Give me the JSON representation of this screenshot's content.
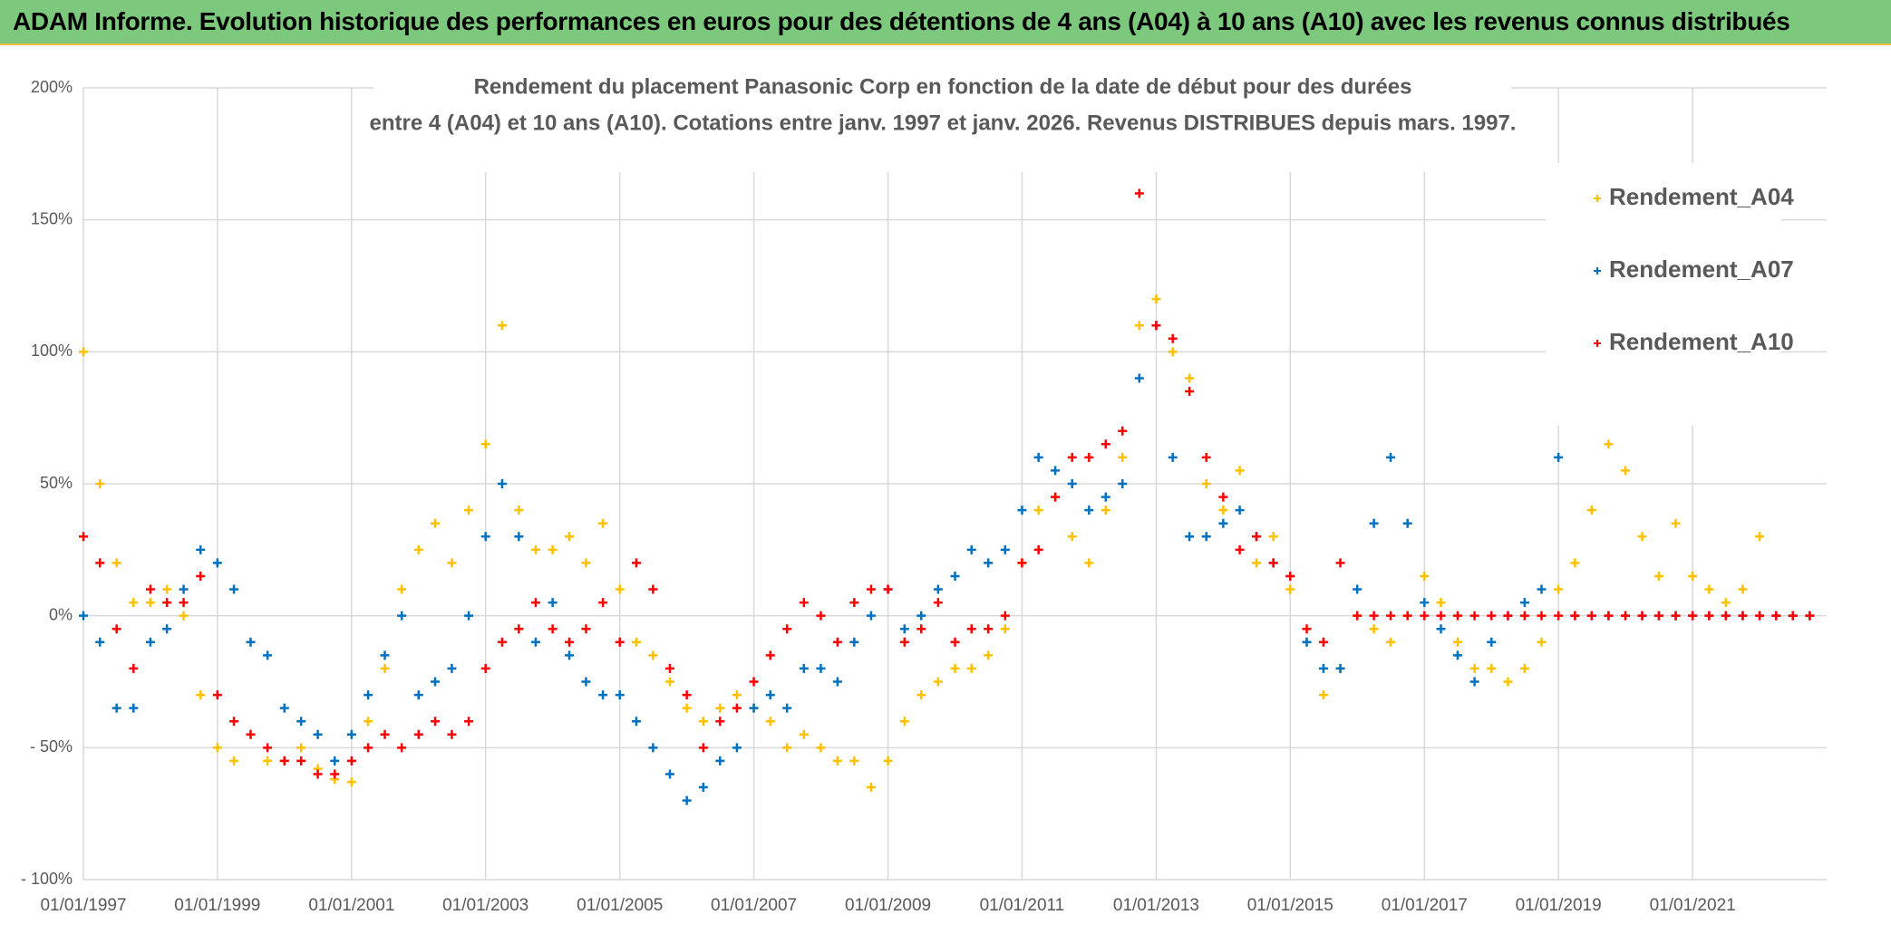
{
  "header": {
    "title": "ADAM Informe. Evolution historique des performances en euros pour des détentions de 4 ans (A04) à 10 ans (A10) avec les revenus connus distribués"
  },
  "chart_data": {
    "type": "scatter",
    "title": [
      "Rendement du placement Panasonic Corp en fonction de la date de début pour des durées",
      "entre 4 (A04) et 10 ans (A10). Cotations entre janv. 1997 et janv. 2026. Revenus DISTRIBUES depuis mars. 1997."
    ],
    "x": [
      "1997-01-01",
      "1997-04-01",
      "1997-07-01",
      "1997-10-01",
      "1998-01-01",
      "1998-04-01",
      "1998-07-01",
      "1998-10-01",
      "1999-01-01",
      "1999-04-01",
      "1999-07-01",
      "1999-10-01",
      "2000-01-01",
      "2000-04-01",
      "2000-07-01",
      "2000-10-01",
      "2001-01-01",
      "2001-04-01",
      "2001-07-01",
      "2001-10-01",
      "2002-01-01",
      "2002-04-01",
      "2002-07-01",
      "2002-10-01",
      "2003-01-01",
      "2003-04-01",
      "2003-07-01",
      "2003-10-01",
      "2004-01-01",
      "2004-04-01",
      "2004-07-01",
      "2004-10-01",
      "2005-01-01",
      "2005-04-01",
      "2005-07-01",
      "2005-10-01",
      "2006-01-01",
      "2006-04-01",
      "2006-07-01",
      "2006-10-01",
      "2007-01-01",
      "2007-04-01",
      "2007-07-01",
      "2007-10-01",
      "2008-01-01",
      "2008-04-01",
      "2008-07-01",
      "2008-10-01",
      "2009-01-01",
      "2009-04-01",
      "2009-07-01",
      "2009-10-01",
      "2010-01-01",
      "2010-04-01",
      "2010-07-01",
      "2010-10-01",
      "2011-01-01",
      "2011-04-01",
      "2011-07-01",
      "2011-10-01",
      "2012-01-01",
      "2012-04-01",
      "2012-07-01",
      "2012-10-01",
      "2013-01-01",
      "2013-04-01",
      "2013-07-01",
      "2013-10-01",
      "2014-01-01",
      "2014-04-01",
      "2014-07-01",
      "2014-10-01",
      "2015-01-01",
      "2015-04-01",
      "2015-07-01",
      "2015-10-01",
      "2016-01-01",
      "2016-04-01",
      "2016-07-01",
      "2016-10-01",
      "2017-01-01",
      "2017-04-01",
      "2017-07-01",
      "2017-10-01",
      "2018-01-01",
      "2018-04-01",
      "2018-07-01",
      "2018-10-01",
      "2019-01-01",
      "2019-04-01",
      "2019-07-01",
      "2019-10-01",
      "2020-01-01",
      "2020-04-01",
      "2020-07-01",
      "2020-10-01",
      "2021-01-01",
      "2021-04-01",
      "2021-07-01",
      "2021-10-01",
      "2022-01-01",
      "2022-04-01",
      "2022-07-01",
      "2022-10-01"
    ],
    "series": [
      {
        "name": "Rendement_A04",
        "color": "#ffc000",
        "values": [
          100,
          50,
          20,
          5,
          5,
          10,
          0,
          -30,
          -50,
          -55,
          -45,
          -55,
          -55,
          -50,
          -58,
          -62,
          -63,
          -40,
          -20,
          10,
          25,
          35,
          20,
          40,
          65,
          110,
          40,
          25,
          25,
          30,
          20,
          35,
          10,
          -10,
          -15,
          -25,
          -35,
          -40,
          -35,
          -30,
          -35,
          -40,
          -50,
          -45,
          -50,
          -55,
          -55,
          -65,
          -55,
          -40,
          -30,
          -25,
          -20,
          -20,
          -15,
          -5,
          20,
          40,
          45,
          30,
          20,
          40,
          60,
          110,
          120,
          100,
          90,
          50,
          40,
          55,
          20,
          30,
          10,
          -10,
          -30,
          -20,
          0,
          -5,
          -10,
          0,
          15,
          5,
          -10,
          -20,
          -20,
          -25,
          -20,
          -10,
          10,
          20,
          40,
          65,
          55,
          30,
          15,
          35,
          15,
          10,
          5,
          10,
          30,
          0,
          0,
          0
        ]
      },
      {
        "name": "Rendement_A07",
        "color": "#0070c0",
        "values": [
          0,
          -10,
          -35,
          -35,
          -10,
          -5,
          10,
          25,
          20,
          10,
          -10,
          -15,
          -35,
          -40,
          -45,
          -55,
          -45,
          -30,
          -15,
          0,
          -30,
          -25,
          -20,
          0,
          30,
          50,
          30,
          -10,
          5,
          -15,
          -25,
          -30,
          -30,
          -40,
          -50,
          -60,
          -70,
          -65,
          -55,
          -50,
          -35,
          -30,
          -35,
          -20,
          -20,
          -25,
          -10,
          0,
          10,
          -5,
          0,
          10,
          15,
          25,
          20,
          25,
          40,
          60,
          55,
          50,
          40,
          45,
          50,
          90,
          110,
          60,
          30,
          30,
          35,
          40,
          30,
          20,
          15,
          -10,
          -20,
          -20,
          10,
          35,
          60,
          35,
          5,
          -5,
          -15,
          -25,
          -10,
          0,
          5,
          10,
          60,
          0,
          0,
          0,
          0,
          0,
          0,
          0,
          0,
          0,
          0,
          0,
          0,
          0,
          0,
          0
        ]
      },
      {
        "name": "Rendement_A10",
        "color": "#ff0000",
        "values": [
          30,
          20,
          -5,
          -20,
          10,
          5,
          5,
          15,
          -30,
          -40,
          -45,
          -50,
          -55,
          -55,
          -60,
          -60,
          -55,
          -50,
          -45,
          -50,
          -45,
          -40,
          -45,
          -40,
          -20,
          -10,
          -5,
          5,
          -5,
          -10,
          -5,
          5,
          -10,
          20,
          10,
          -20,
          -30,
          -50,
          -40,
          -35,
          -25,
          -15,
          -5,
          5,
          0,
          -10,
          5,
          10,
          10,
          -10,
          -5,
          5,
          -10,
          -5,
          -5,
          0,
          20,
          25,
          45,
          60,
          60,
          65,
          70,
          160,
          110,
          105,
          85,
          60,
          45,
          25,
          30,
          20,
          15,
          -5,
          -10,
          20,
          0,
          0,
          0,
          0,
          0,
          0,
          0,
          0,
          0,
          0,
          0,
          0,
          0,
          0,
          0,
          0,
          0,
          0,
          0,
          0,
          0,
          0,
          0,
          0,
          0,
          0,
          0,
          0
        ]
      }
    ],
    "xlim": [
      "1997-01-01",
      "2023-01-01"
    ],
    "xticks": [
      {
        "value": "1997-01-01",
        "label": "01/01/1997"
      },
      {
        "value": "1999-01-01",
        "label": "01/01/1999"
      },
      {
        "value": "2001-01-01",
        "label": "01/01/2001"
      },
      {
        "value": "2003-01-01",
        "label": "01/01/2003"
      },
      {
        "value": "2005-01-01",
        "label": "01/01/2005"
      },
      {
        "value": "2007-01-01",
        "label": "01/01/2007"
      },
      {
        "value": "2009-01-01",
        "label": "01/01/2009"
      },
      {
        "value": "2011-01-01",
        "label": "01/01/2011"
      },
      {
        "value": "2013-01-01",
        "label": "01/01/2013"
      },
      {
        "value": "2015-01-01",
        "label": "01/01/2015"
      },
      {
        "value": "2017-01-01",
        "label": "01/01/2017"
      },
      {
        "value": "2019-01-01",
        "label": "01/01/2019"
      },
      {
        "value": "2021-01-01",
        "label": "01/01/2021"
      }
    ],
    "ylim": [
      -100,
      200
    ],
    "yticks": [
      {
        "value": -100,
        "label": "- 100%"
      },
      {
        "value": -50,
        "label": "- 50%"
      },
      {
        "value": 0,
        "label": "0%"
      },
      {
        "value": 50,
        "label": "50%"
      },
      {
        "value": 100,
        "label": "100%"
      },
      {
        "value": 150,
        "label": "150%"
      },
      {
        "value": 200,
        "label": "200%"
      }
    ],
    "grid": true,
    "legend": "right"
  }
}
